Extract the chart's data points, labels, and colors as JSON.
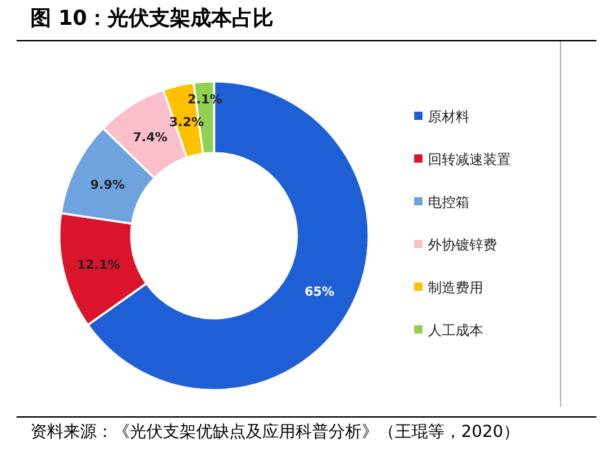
{
  "chart_data": {
    "type": "donut",
    "title": "图 10：光伏支架成本占比",
    "categories": [
      "原材料",
      "回转减速装置",
      "电控箱",
      "外协镀锌费",
      "制造费用",
      "人工成本"
    ],
    "values": [
      65,
      12.1,
      9.9,
      7.4,
      3.2,
      2.1
    ],
    "colors": [
      "#1f5fd6",
      "#d9142b",
      "#6fa3e0",
      "#f9c0cb",
      "#ffc000",
      "#92d050"
    ],
    "value_labels": [
      "65%",
      "12.1%",
      "9.9%",
      "7.4%",
      "3.2%",
      "2.1%"
    ],
    "legend": "right",
    "annotations": [
      "资料来源：《光伏支架优缺点及应用科普分析》（王琨等，2020）"
    ]
  }
}
